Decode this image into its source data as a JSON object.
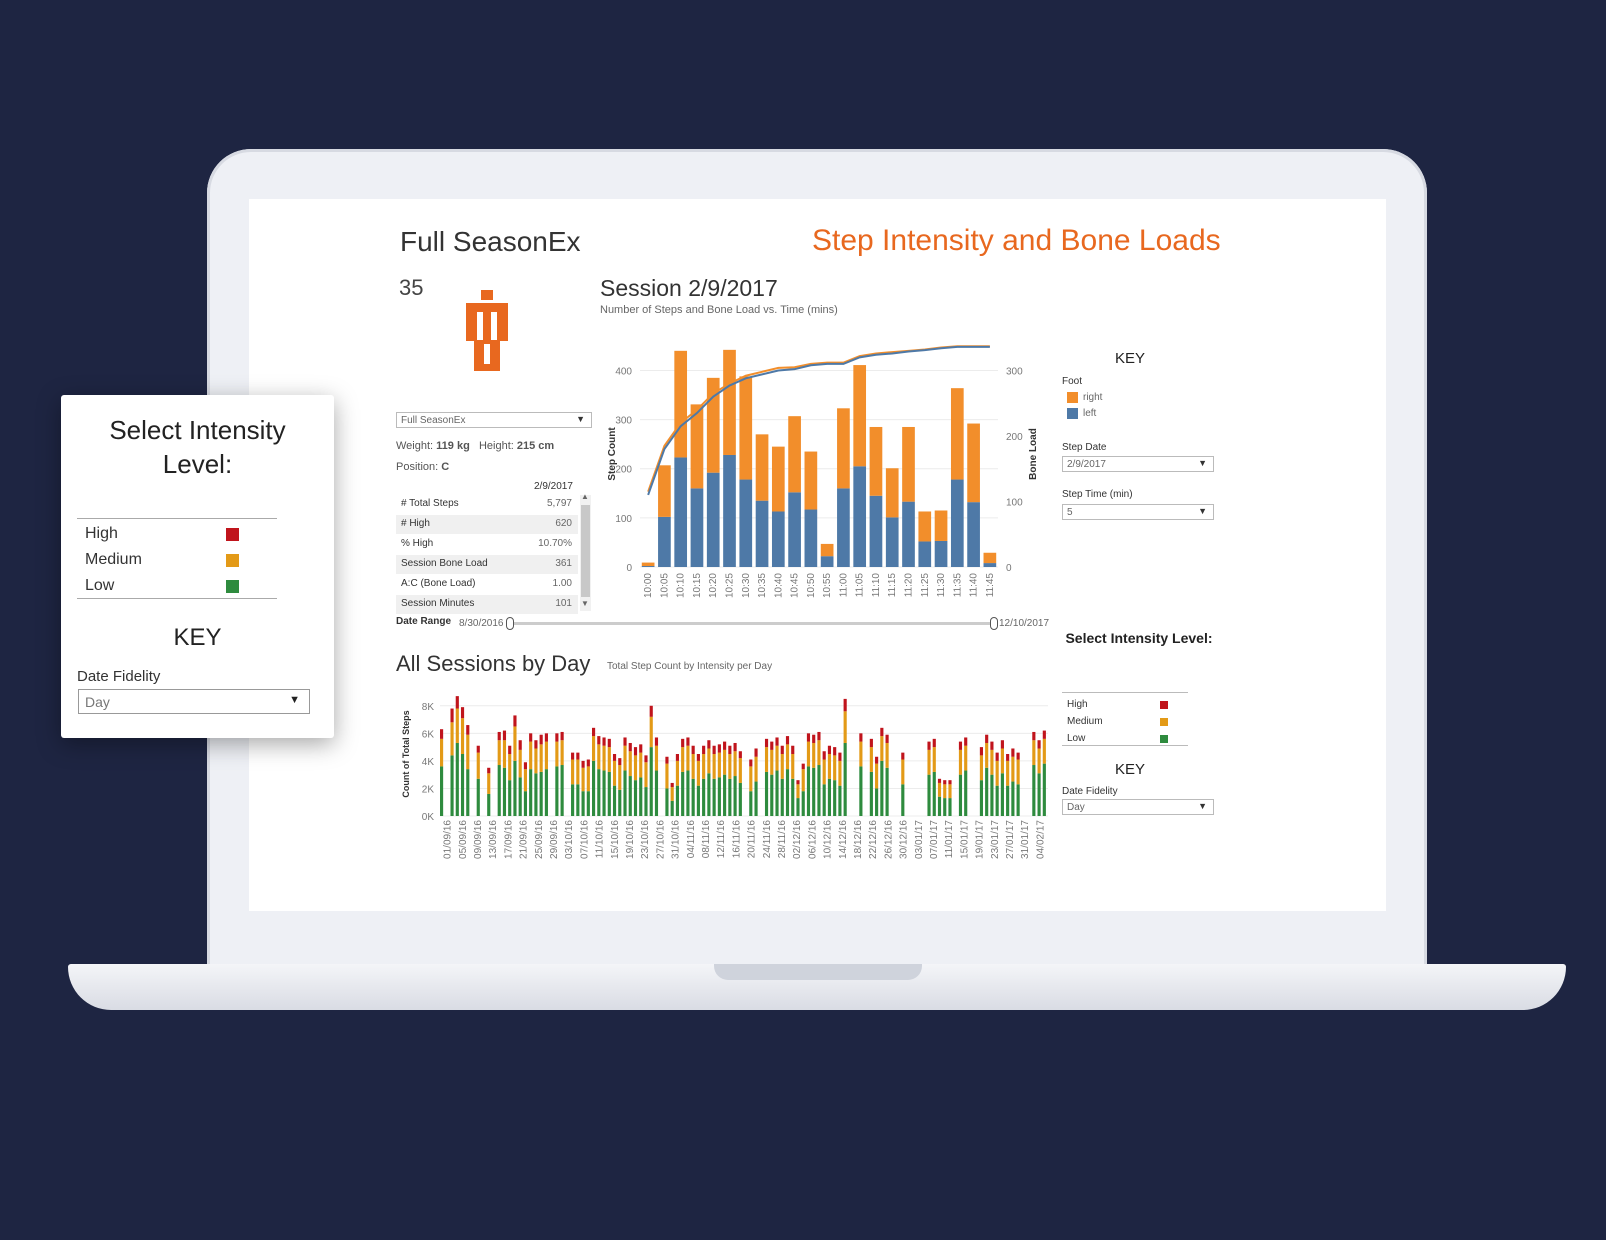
{
  "dashboard": {
    "player_name": "Full SeasonEx",
    "player_number": "35",
    "page_title": "Step Intensity and Bone Loads",
    "player_select": "Full SeasonEx",
    "weight_label": "Weight:",
    "weight_value": "119 kg",
    "height_label": "Height:",
    "height_value": "215 cm",
    "position_label": "Position:",
    "position_value": "C",
    "stats_date": "2/9/2017",
    "stats": [
      {
        "label": "# Total Steps",
        "value": "5,797"
      },
      {
        "label": "# High",
        "value": "620"
      },
      {
        "label": "% High",
        "value": "10.70%"
      },
      {
        "label": "Session Bone Load",
        "value": "361"
      },
      {
        "label": "A:C (Bone Load)",
        "value": "1.00"
      },
      {
        "label": "Session Minutes",
        "value": "101"
      }
    ],
    "date_range_label": "Date Range",
    "date_range_start": "8/30/2016",
    "date_range_end": "12/10/2017"
  },
  "session_key": {
    "title": "KEY",
    "foot_label": "Foot",
    "right_label": "right",
    "left_label": "left",
    "step_date_label": "Step Date",
    "step_date_value": "2/9/2017",
    "step_time_label": "Step Time (min)",
    "step_time_value": "5"
  },
  "intensity_key": {
    "title": "Select Intensity Level:",
    "levels": [
      {
        "label": "High",
        "color": "#c0141c"
      },
      {
        "label": "Medium",
        "color": "#e39a17"
      },
      {
        "label": "Low",
        "color": "#2e8b3e"
      }
    ],
    "key_title": "KEY",
    "date_fidelity_label": "Date Fidelity",
    "date_fidelity_value": "Day"
  },
  "popup": {
    "title_line1": "Select Intensity",
    "title_line2": "Level:",
    "levels": [
      {
        "label": "High",
        "color": "#c0141c"
      },
      {
        "label": "Medium",
        "color": "#e39a17"
      },
      {
        "label": "Low",
        "color": "#2e8b3e"
      }
    ],
    "key_title": "KEY",
    "date_fidelity_label": "Date Fidelity",
    "date_fidelity_value": "Day"
  },
  "colors": {
    "right": "#f28e2b",
    "left": "#4e79a7",
    "line_right": "#f28e2b",
    "line_left": "#4e79a7",
    "accent": "#e8681f"
  },
  "chart_data": [
    {
      "type": "bar",
      "title": "Session 2/9/2017",
      "subtitle": "Number of Steps and Bone Load vs. Time (mins)",
      "ylabel": "Step Count",
      "y2label": "Bone Load",
      "ylim": [
        0,
        460
      ],
      "y2lim": [
        0,
        345
      ],
      "yticks": [
        0,
        100,
        200,
        300,
        400
      ],
      "y2ticks": [
        0,
        100,
        200,
        300
      ],
      "categories": [
        "10:00",
        "10:05",
        "10:10",
        "10:15",
        "10:20",
        "10:25",
        "10:30",
        "10:35",
        "10:40",
        "10:45",
        "10:50",
        "10:55",
        "11:00",
        "11:05",
        "11:10",
        "11:15",
        "11:20",
        "11:25",
        "11:30",
        "11:35",
        "11:40",
        "11:45"
      ],
      "series": [
        {
          "name": "left",
          "values": [
            2,
            102,
            223,
            160,
            192,
            228,
            178,
            135,
            113,
            152,
            117,
            22,
            160,
            205,
            145,
            101,
            133,
            52,
            53,
            178,
            132,
            8
          ]
        },
        {
          "name": "right",
          "values": [
            7,
            105,
            217,
            171,
            193,
            214,
            210,
            135,
            132,
            155,
            118,
            25,
            163,
            206,
            140,
            100,
            152,
            61,
            62,
            186,
            160,
            21
          ]
        }
      ],
      "bone_load_lines": [
        {
          "name": "right",
          "values": [
            115,
            185,
            220,
            240,
            265,
            280,
            292,
            298,
            304,
            305,
            310,
            312,
            312,
            322,
            326,
            328,
            330,
            332,
            335,
            337,
            337,
            337
          ]
        },
        {
          "name": "left",
          "values": [
            110,
            180,
            215,
            235,
            260,
            277,
            288,
            294,
            300,
            302,
            308,
            310,
            310,
            320,
            324,
            326,
            329,
            331,
            334,
            336,
            336,
            336
          ]
        }
      ]
    },
    {
      "type": "bar",
      "title": "All Sessions by Day",
      "subtitle": "Total Step Count by Intensity per Day",
      "ylabel": "Count of Total Steps",
      "ylim": [
        0,
        9000
      ],
      "yticks": [
        0,
        2000,
        4000,
        6000,
        8000
      ],
      "ytick_labels": [
        "0K",
        "2K",
        "4K",
        "6K",
        "8K"
      ],
      "x_tick_labels": [
        "01/09/16",
        "05/09/16",
        "09/09/16",
        "13/09/16",
        "17/09/16",
        "21/09/16",
        "25/09/16",
        "29/09/16",
        "03/10/16",
        "07/10/16",
        "11/10/16",
        "15/10/16",
        "19/10/16",
        "23/10/16",
        "27/10/16",
        "31/10/16",
        "04/11/16",
        "08/11/16",
        "12/11/16",
        "16/11/16",
        "20/11/16",
        "24/11/16",
        "28/11/16",
        "02/12/16",
        "06/12/16",
        "10/12/16",
        "14/12/16",
        "18/12/16",
        "22/12/16",
        "26/12/16",
        "30/12/16",
        "03/01/17",
        "07/01/17",
        "11/01/17",
        "15/01/17",
        "19/01/17",
        "23/01/17",
        "27/01/17",
        "31/01/17",
        "04/02/17"
      ],
      "series": [
        {
          "name": "Low",
          "values": [
            3600,
            0,
            4400,
            5300,
            4500,
            3400,
            0,
            2700,
            0,
            1600,
            0,
            3700,
            3500,
            2600,
            4000,
            2800,
            1800,
            3400,
            3100,
            3200,
            3400,
            0,
            3600,
            3700,
            0,
            2300,
            2300,
            1800,
            1800,
            4000,
            3400,
            3300,
            3200,
            2200,
            1900,
            3300,
            2900,
            2600,
            2800,
            2100,
            5000,
            3300,
            0,
            2000,
            1100,
            2200,
            3200,
            3300,
            2700,
            2200,
            2700,
            3100,
            2700,
            2800,
            3000,
            2700,
            2900,
            2400,
            0,
            1800,
            2500,
            0,
            3200,
            3000,
            3300,
            2700,
            3400,
            2700,
            1300,
            1800,
            3600,
            3500,
            3700,
            2300,
            2700,
            2600,
            2200,
            5300,
            0,
            0,
            3600,
            0,
            3200,
            2000,
            4000,
            3500,
            0,
            0,
            2300,
            0,
            0,
            0,
            0,
            3000,
            3200,
            1400,
            1300,
            1300,
            0,
            3000,
            3300,
            0,
            0,
            2600,
            3500,
            3000,
            2200,
            3100,
            2200,
            2500,
            2300,
            0,
            0,
            3700,
            3100,
            3800
          ]
        },
        {
          "name": "Medium",
          "values": [
            2000,
            0,
            2400,
            2500,
            2600,
            2500,
            0,
            1900,
            0,
            1500,
            0,
            1800,
            2000,
            1900,
            2500,
            2000,
            1600,
            2000,
            1800,
            2000,
            2000,
            0,
            1800,
            1800,
            0,
            1800,
            1800,
            1700,
            1800,
            1800,
            1800,
            1800,
            1800,
            1800,
            1800,
            1800,
            1800,
            1800,
            1800,
            1800,
            2200,
            1800,
            0,
            1800,
            1000,
            1800,
            1800,
            1800,
            1800,
            1800,
            1800,
            1800,
            1800,
            1800,
            1800,
            1800,
            1800,
            1800,
            0,
            1800,
            1800,
            0,
            1800,
            1800,
            1800,
            1800,
            1800,
            1800,
            1000,
            1600,
            1800,
            1800,
            1800,
            1800,
            1800,
            1800,
            1800,
            2300,
            0,
            0,
            1800,
            0,
            1800,
            1800,
            1800,
            1800,
            0,
            0,
            1800,
            0,
            0,
            0,
            0,
            1800,
            1800,
            1000,
            1000,
            1000,
            0,
            1800,
            1800,
            0,
            0,
            1800,
            1800,
            1800,
            1800,
            1800,
            1800,
            1800,
            1800,
            0,
            0,
            1800,
            1800,
            1800
          ]
        },
        {
          "name": "High",
          "values": [
            700,
            0,
            1000,
            900,
            800,
            700,
            0,
            500,
            0,
            400,
            0,
            600,
            700,
            600,
            800,
            700,
            500,
            600,
            600,
            700,
            600,
            0,
            600,
            600,
            0,
            500,
            500,
            500,
            500,
            600,
            600,
            600,
            600,
            500,
            500,
            600,
            600,
            600,
            600,
            500,
            800,
            600,
            0,
            500,
            300,
            500,
            600,
            600,
            600,
            500,
            600,
            600,
            600,
            600,
            600,
            600,
            600,
            500,
            0,
            500,
            600,
            0,
            600,
            600,
            600,
            600,
            600,
            600,
            300,
            400,
            600,
            600,
            600,
            600,
            600,
            600,
            600,
            900,
            0,
            0,
            600,
            0,
            600,
            500,
            600,
            600,
            0,
            0,
            500,
            0,
            0,
            0,
            0,
            600,
            600,
            300,
            300,
            300,
            0,
            600,
            600,
            0,
            0,
            600,
            600,
            600,
            600,
            600,
            500,
            600,
            500,
            0,
            0,
            600,
            600,
            600
          ]
        }
      ]
    }
  ]
}
